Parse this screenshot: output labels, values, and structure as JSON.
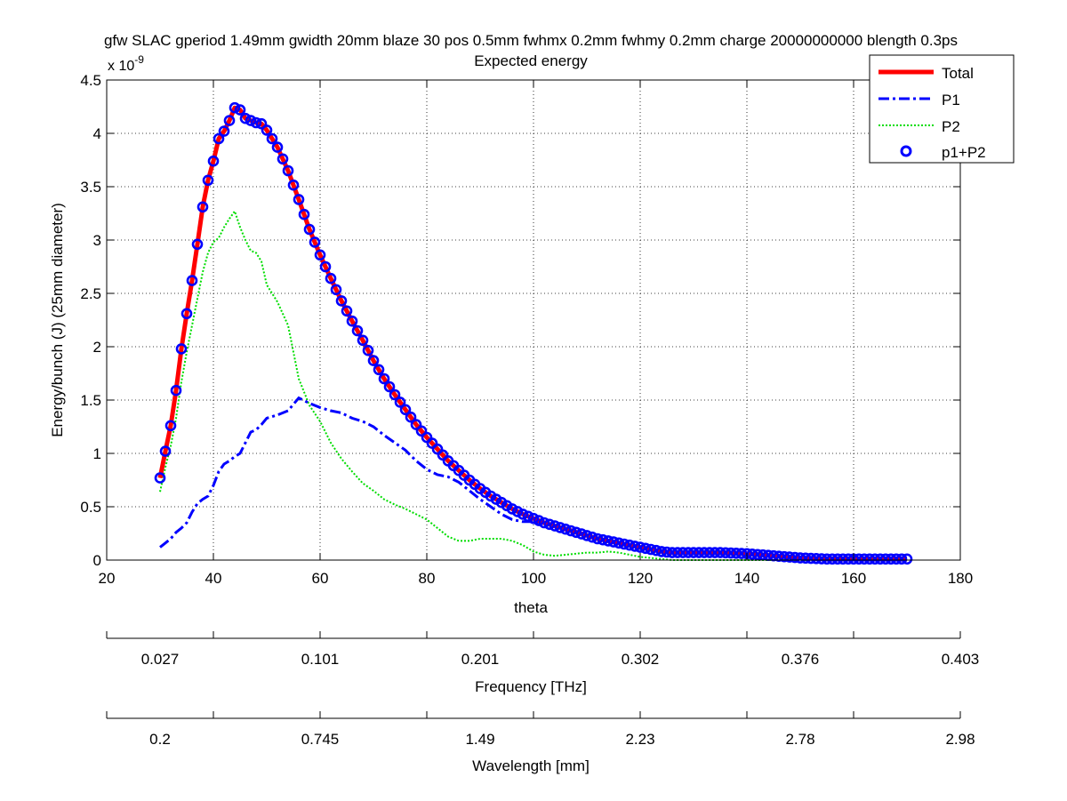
{
  "chart_data": {
    "type": "line",
    "title_line1": "gfw SLAC gperiod 1.49mm gwidth 20mm blaze 30 pos 0.5mm fwhmx 0.2mm fwhmy 0.2mm charge 20000000000 blength 0.3ps",
    "title_line2": "Expected energy",
    "xlabel": "theta",
    "ylabel": "Energy/bunch (J)  (25mm diameter)",
    "y_exponent_label": "x 10",
    "y_exponent_power": "-9",
    "xlim": [
      20,
      180
    ],
    "ylim": [
      0,
      4.5
    ],
    "xticks": [
      20,
      40,
      60,
      80,
      100,
      120,
      140,
      160,
      180
    ],
    "yticks": [
      0,
      0.5,
      1,
      1.5,
      2,
      2.5,
      3,
      3.5,
      4,
      4.5
    ],
    "grid": true,
    "legend_position": "top-right",
    "colors": {
      "total": "#ff0000",
      "p1": "#0000ff",
      "p2": "#00dd00",
      "p1p2": "#0000ff"
    },
    "series_names": {
      "total": "Total",
      "p1": "P1",
      "p2": "P2",
      "p1p2": "p1+P2"
    },
    "total_anchor_points": [
      [
        30,
        0.77
      ],
      [
        31,
        1.02
      ],
      [
        32,
        1.26
      ],
      [
        33,
        1.59
      ],
      [
        34,
        1.98
      ],
      [
        35,
        2.31
      ],
      [
        36,
        2.62
      ],
      [
        37,
        2.96
      ],
      [
        38,
        3.31
      ],
      [
        39,
        3.56
      ],
      [
        40,
        3.74
      ],
      [
        41,
        3.95
      ],
      [
        42,
        4.02
      ],
      [
        43,
        4.12
      ],
      [
        44,
        4.24
      ],
      [
        45,
        4.22
      ],
      [
        46,
        4.14
      ],
      [
        47,
        4.12
      ],
      [
        48,
        4.1
      ],
      [
        49,
        4.09
      ],
      [
        50,
        4.03
      ],
      [
        52,
        3.87
      ],
      [
        54,
        3.65
      ],
      [
        56,
        3.38
      ],
      [
        58,
        3.1
      ],
      [
        60,
        2.86
      ],
      [
        62,
        2.64
      ],
      [
        64,
        2.43
      ],
      [
        66,
        2.24
      ],
      [
        68,
        2.06
      ],
      [
        70,
        1.87
      ],
      [
        72,
        1.7
      ],
      [
        74,
        1.55
      ],
      [
        76,
        1.41
      ],
      [
        78,
        1.27
      ],
      [
        80,
        1.15
      ],
      [
        82,
        1.04
      ],
      [
        84,
        0.93
      ],
      [
        86,
        0.84
      ],
      [
        88,
        0.75
      ],
      [
        90,
        0.67
      ],
      [
        92,
        0.6
      ],
      [
        94,
        0.54
      ],
      [
        96,
        0.48
      ],
      [
        98,
        0.43
      ],
      [
        100,
        0.39
      ],
      [
        102,
        0.35
      ],
      [
        104,
        0.32
      ],
      [
        106,
        0.29
      ],
      [
        108,
        0.26
      ],
      [
        110,
        0.23
      ],
      [
        112,
        0.2
      ],
      [
        114,
        0.18
      ],
      [
        116,
        0.16
      ],
      [
        118,
        0.14
      ],
      [
        120,
        0.12
      ],
      [
        122,
        0.1
      ],
      [
        124,
        0.08
      ],
      [
        126,
        0.07
      ],
      [
        128,
        0.07
      ],
      [
        130,
        0.07
      ],
      [
        135,
        0.07
      ],
      [
        140,
        0.06
      ],
      [
        145,
        0.04
      ],
      [
        150,
        0.02
      ],
      [
        155,
        0.01
      ],
      [
        160,
        0.01
      ],
      [
        165,
        0.01
      ],
      [
        170,
        0.01
      ]
    ],
    "p1_anchor_points": [
      [
        30,
        0.12
      ],
      [
        31,
        0.16
      ],
      [
        32,
        0.2
      ],
      [
        33,
        0.26
      ],
      [
        34,
        0.3
      ],
      [
        35,
        0.35
      ],
      [
        36,
        0.45
      ],
      [
        37,
        0.53
      ],
      [
        38,
        0.57
      ],
      [
        39,
        0.6
      ],
      [
        40,
        0.7
      ],
      [
        41,
        0.83
      ],
      [
        42,
        0.9
      ],
      [
        43,
        0.93
      ],
      [
        44,
        0.97
      ],
      [
        45,
        1.0
      ],
      [
        46,
        1.1
      ],
      [
        47,
        1.2
      ],
      [
        48,
        1.22
      ],
      [
        49,
        1.27
      ],
      [
        50,
        1.33
      ],
      [
        52,
        1.36
      ],
      [
        54,
        1.4
      ],
      [
        56,
        1.52
      ],
      [
        58,
        1.47
      ],
      [
        60,
        1.43
      ],
      [
        62,
        1.4
      ],
      [
        64,
        1.38
      ],
      [
        66,
        1.33
      ],
      [
        68,
        1.3
      ],
      [
        70,
        1.25
      ],
      [
        72,
        1.17
      ],
      [
        74,
        1.1
      ],
      [
        76,
        1.03
      ],
      [
        78,
        0.93
      ],
      [
        80,
        0.85
      ],
      [
        82,
        0.8
      ],
      [
        84,
        0.78
      ],
      [
        86,
        0.73
      ],
      [
        88,
        0.65
      ],
      [
        90,
        0.57
      ],
      [
        92,
        0.5
      ],
      [
        94,
        0.43
      ],
      [
        96,
        0.38
      ],
      [
        98,
        0.36
      ],
      [
        100,
        0.36
      ],
      [
        102,
        0.34
      ],
      [
        104,
        0.32
      ],
      [
        106,
        0.3
      ],
      [
        108,
        0.27
      ],
      [
        110,
        0.24
      ],
      [
        112,
        0.2
      ],
      [
        114,
        0.18
      ],
      [
        116,
        0.15
      ],
      [
        118,
        0.13
      ],
      [
        120,
        0.12
      ],
      [
        122,
        0.1
      ],
      [
        124,
        0.08
      ],
      [
        126,
        0.07
      ],
      [
        128,
        0.07
      ],
      [
        130,
        0.07
      ],
      [
        135,
        0.07
      ],
      [
        140,
        0.06
      ],
      [
        145,
        0.04
      ],
      [
        150,
        0.02
      ],
      [
        155,
        0.01
      ],
      [
        160,
        0.01
      ],
      [
        165,
        0.01
      ],
      [
        170,
        0.01
      ]
    ],
    "p2_anchor_points": [
      [
        30,
        0.64
      ],
      [
        31,
        0.87
      ],
      [
        32,
        1.07
      ],
      [
        33,
        1.33
      ],
      [
        34,
        1.67
      ],
      [
        35,
        1.95
      ],
      [
        36,
        2.2
      ],
      [
        37,
        2.45
      ],
      [
        38,
        2.7
      ],
      [
        39,
        2.88
      ],
      [
        40,
        2.98
      ],
      [
        41,
        3.02
      ],
      [
        42,
        3.12
      ],
      [
        43,
        3.2
      ],
      [
        44,
        3.27
      ],
      [
        45,
        3.12
      ],
      [
        46,
        3.0
      ],
      [
        47,
        2.9
      ],
      [
        48,
        2.88
      ],
      [
        49,
        2.8
      ],
      [
        50,
        2.58
      ],
      [
        52,
        2.42
      ],
      [
        54,
        2.2
      ],
      [
        56,
        1.7
      ],
      [
        58,
        1.45
      ],
      [
        60,
        1.3
      ],
      [
        62,
        1.1
      ],
      [
        64,
        0.95
      ],
      [
        66,
        0.83
      ],
      [
        68,
        0.72
      ],
      [
        70,
        0.65
      ],
      [
        72,
        0.57
      ],
      [
        74,
        0.52
      ],
      [
        76,
        0.48
      ],
      [
        78,
        0.43
      ],
      [
        80,
        0.38
      ],
      [
        82,
        0.3
      ],
      [
        84,
        0.22
      ],
      [
        86,
        0.18
      ],
      [
        88,
        0.18
      ],
      [
        90,
        0.2
      ],
      [
        92,
        0.2
      ],
      [
        94,
        0.2
      ],
      [
        96,
        0.18
      ],
      [
        98,
        0.14
      ],
      [
        100,
        0.08
      ],
      [
        102,
        0.05
      ],
      [
        104,
        0.04
      ],
      [
        106,
        0.05
      ],
      [
        108,
        0.06
      ],
      [
        110,
        0.07
      ],
      [
        112,
        0.07
      ],
      [
        114,
        0.08
      ],
      [
        116,
        0.07
      ],
      [
        118,
        0.05
      ],
      [
        120,
        0.03
      ],
      [
        122,
        0.02
      ],
      [
        124,
        0.01
      ],
      [
        126,
        0.0
      ],
      [
        130,
        0.0
      ],
      [
        140,
        0.0
      ],
      [
        150,
        0.0
      ],
      [
        160,
        0.0
      ],
      [
        170,
        0.0
      ]
    ],
    "marker_x_start": 30,
    "marker_x_end": 170,
    "marker_x_step": 1,
    "frequency_axis": {
      "label": "Frequency [THz]",
      "ticks": [
        [
          30,
          "0.027"
        ],
        [
          60,
          "0.101"
        ],
        [
          90,
          "0.201"
        ],
        [
          120,
          "0.302"
        ],
        [
          150,
          "0.376"
        ],
        [
          180,
          "0.403"
        ]
      ]
    },
    "wavelength_axis": {
      "label": "Wavelength [mm]",
      "ticks": [
        [
          30,
          "0.2"
        ],
        [
          60,
          "0.745"
        ],
        [
          90,
          "1.49"
        ],
        [
          120,
          "2.23"
        ],
        [
          150,
          "2.78"
        ],
        [
          180,
          "2.98"
        ]
      ]
    }
  }
}
